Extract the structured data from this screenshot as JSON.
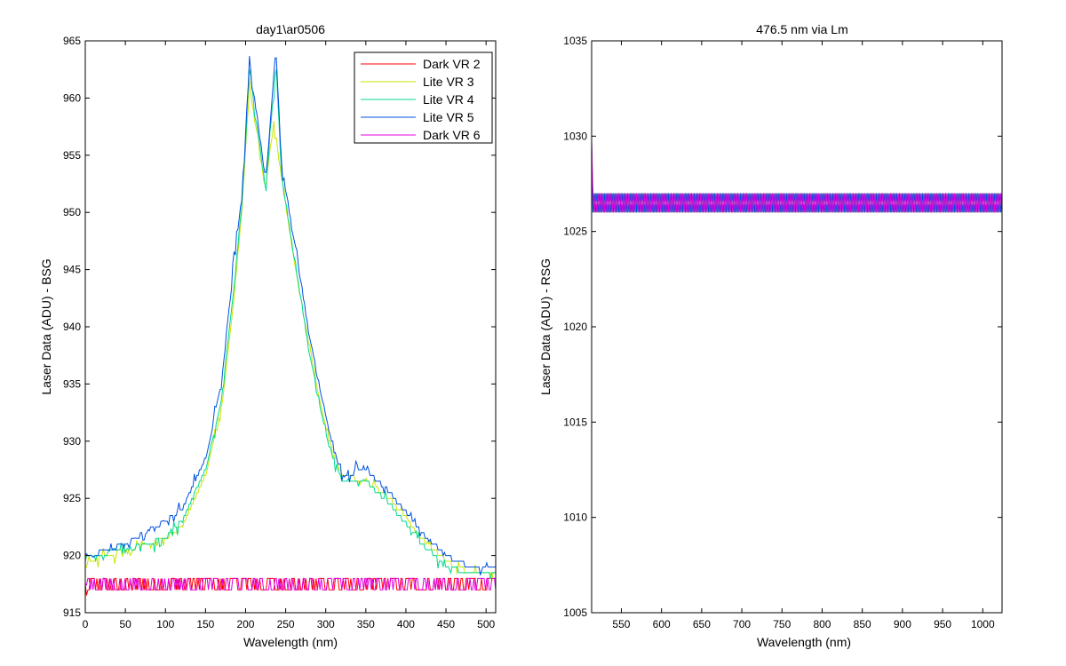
{
  "chart_data": [
    {
      "type": "line",
      "title": "day1\\ar0506",
      "xlabel": "Wavelength (nm)",
      "ylabel": "Laser Data (ADU) - BSG",
      "xlim": [
        0,
        512
      ],
      "ylim": [
        915,
        965
      ],
      "xticks": [
        0,
        50,
        100,
        150,
        200,
        250,
        300,
        350,
        400,
        450,
        500
      ],
      "yticks": [
        915,
        920,
        925,
        930,
        935,
        940,
        945,
        950,
        955,
        960,
        965
      ],
      "legend_position": "top-right",
      "grid": false,
      "series": [
        {
          "name": "Dark VR 2",
          "color": "#ff0000",
          "role": "flat",
          "x": [
            0,
            512
          ],
          "y": [
            917.5,
            917.5
          ]
        },
        {
          "name": "Lite VR 3",
          "color": "#c8e600",
          "role": "peak",
          "x": [
            0,
            5,
            50,
            100,
            120,
            150,
            170,
            185,
            195,
            205,
            225,
            235,
            245,
            260,
            280,
            300,
            320,
            350,
            380,
            420,
            450,
            480,
            512
          ],
          "y": [
            919,
            919.5,
            920.5,
            921.5,
            922.5,
            927,
            933,
            942,
            950,
            961,
            952,
            958,
            953,
            946,
            938,
            931,
            927,
            926.5,
            925,
            921.5,
            919.5,
            918.5,
            918.5
          ]
        },
        {
          "name": "Lite VR 4",
          "color": "#00d890",
          "role": "peak",
          "x": [
            0,
            5,
            50,
            100,
            120,
            150,
            170,
            185,
            195,
            205,
            225,
            238,
            245,
            262,
            280,
            300,
            320,
            350,
            380,
            420,
            450,
            480,
            512
          ],
          "y": [
            919.5,
            920,
            920.5,
            921.5,
            923,
            927.5,
            933.5,
            943,
            950.5,
            962.5,
            952,
            963,
            953,
            945.5,
            937.5,
            930.5,
            926.5,
            926.5,
            924.5,
            921,
            919,
            918.5,
            918.5
          ]
        },
        {
          "name": "Lite VR 5",
          "color": "#0050e0",
          "role": "peak",
          "x": [
            0,
            5,
            50,
            100,
            120,
            150,
            170,
            185,
            195,
            205,
            225,
            238,
            245,
            262,
            280,
            300,
            320,
            350,
            380,
            420,
            450,
            480,
            512
          ],
          "y": [
            920,
            920,
            921,
            923,
            924,
            928.5,
            935,
            946,
            951,
            963,
            953,
            964,
            954,
            947,
            939,
            932,
            927,
            927.5,
            925.5,
            922,
            920,
            919,
            919
          ]
        },
        {
          "name": "Dark VR 6",
          "color": "#e000e0",
          "role": "flat",
          "x": [
            0,
            512
          ],
          "y": [
            917.5,
            917.5
          ]
        }
      ]
    },
    {
      "type": "line",
      "title": "476.5 nm via Lm",
      "xlabel": "Wavelength (nm)",
      "ylabel": "Laser Data (ADU) - RSG",
      "xlim": [
        513,
        1024
      ],
      "ylim": [
        1005,
        1035
      ],
      "xticks": [
        550,
        600,
        650,
        700,
        750,
        800,
        850,
        900,
        950,
        1000
      ],
      "yticks": [
        1005,
        1010,
        1015,
        1020,
        1025,
        1030,
        1035
      ],
      "grid": false,
      "series": [
        {
          "color": "#ff0000",
          "x": [
            513,
            1024
          ],
          "y": [
            1026.5,
            1026.5
          ]
        },
        {
          "color": "#c8e600",
          "x": [
            513,
            1024
          ],
          "y": [
            1026.5,
            1026.5
          ]
        },
        {
          "color": "#00d890",
          "x": [
            513,
            1024
          ],
          "y": [
            1026.5,
            1026.5
          ]
        },
        {
          "color": "#0050e0",
          "x": [
            513,
            1024
          ],
          "y": [
            1026.5,
            1026.5
          ]
        },
        {
          "color": "#e000e0",
          "x": [
            513,
            1024
          ],
          "y": [
            1026.5,
            1026.5
          ]
        }
      ]
    }
  ]
}
